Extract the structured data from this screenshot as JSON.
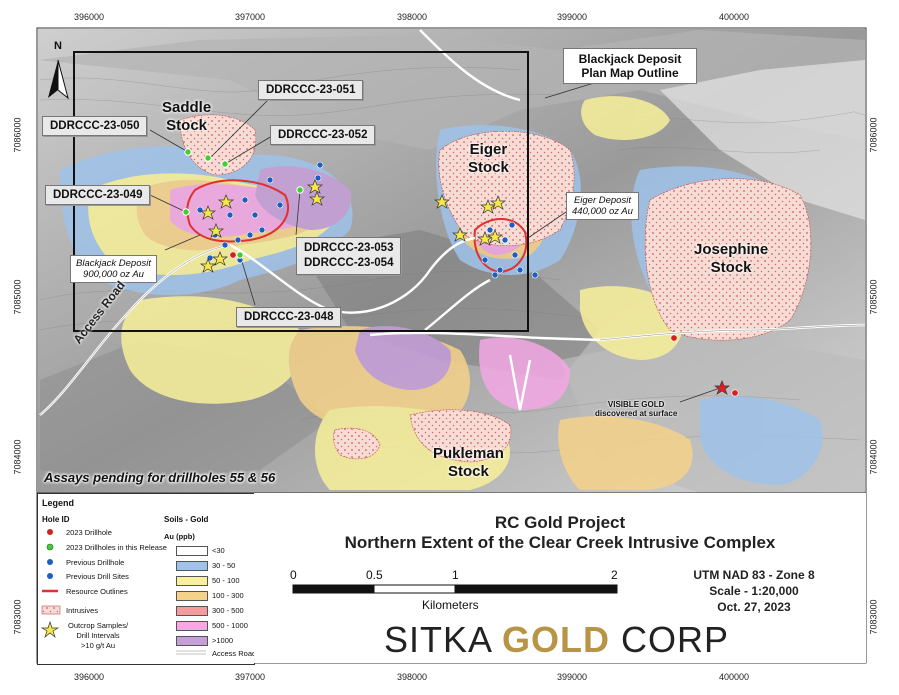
{
  "coordinates": {
    "easting": [
      "396000",
      "397000",
      "398000",
      "399000",
      "400000"
    ],
    "northing": [
      "7086000",
      "7085000",
      "7084000",
      "7083000"
    ]
  },
  "north_arrow": {
    "label": "N",
    "icon": "north-arrow-icon"
  },
  "map_labels": {
    "blackjack_outline": "Blackjack Deposit\nPlan Map Outline",
    "stocks": {
      "saddle": "Saddle\nStock",
      "eiger": "Eiger\nStock",
      "josephine": "Josephine\nStock",
      "pukleman": "Pukleman\nStock"
    },
    "deposits": {
      "blackjack": "Blackjack Deposit\n900,000 oz Au",
      "eiger": "Eiger Deposit\n440,000 oz Au"
    },
    "drillholes": {
      "h048": "DDRCCC-23-048",
      "h049": "DDRCCC-23-049",
      "h050": "DDRCCC-23-050",
      "h051": "DDRCCC-23-051",
      "h052": "DDRCCC-23-052",
      "h053_054": "DDRCCC-23-053\nDDRCCC-23-054"
    },
    "access_road": "Access Road",
    "visible_gold": "VISIBLE GOLD\ndiscovered at surface",
    "assays_pending": "Assays pending for drillholes 55 & 56"
  },
  "legend": {
    "title": "Legend",
    "hole_id_header": "Hole ID",
    "hole_items": [
      {
        "label": "2023 Drillhole",
        "color": "#d42020",
        "icon": "red-dot-icon"
      },
      {
        "label": "2023 Drillholes in this Release",
        "color": "#44cc33",
        "icon": "green-dot-icon"
      },
      {
        "label": "Previous Drillhole",
        "color": "#1c5fc0",
        "icon": "blue-dot-icon"
      },
      {
        "label": "Previous Drill Sites",
        "color": "#1c5fc0",
        "icon": "blue-dot-icon"
      },
      {
        "label": "Resource Outlines",
        "color": "#e03030",
        "icon": "red-line-icon"
      }
    ],
    "intrusives_label": "Intrusives",
    "outcrop_label": "Outcrop Samples/\nDrill Intervals\n>10 g/t Au",
    "soils_header": "Soils - Gold",
    "soils_unit": "Au (ppb)",
    "soils_classes": [
      {
        "label": "<30",
        "color": "#ffffff"
      },
      {
        "label": "30 - 50",
        "color": "#9fc3ea"
      },
      {
        "label": "50 - 100",
        "color": "#f8f09a"
      },
      {
        "label": "100 - 300",
        "color": "#f5d28a"
      },
      {
        "label": "300 - 500",
        "color": "#f39c9c"
      },
      {
        "label": "500 - 1000",
        "color": "#f4a8e4"
      },
      {
        "label": ">1000",
        "color": "#c79ed9"
      }
    ],
    "access_roads_label": "Access Roads"
  },
  "title_block": {
    "line1": "RC Gold Project",
    "line2": "Northern Extent of the Clear Creek Intrusive Complex",
    "scalebar": {
      "ticks": [
        "0",
        "0.5",
        "1",
        "2"
      ],
      "unit": "Kilometers"
    },
    "projection": "UTM NAD 83 - Zone 8",
    "scale": "Scale - 1:20,000",
    "date": "Oct. 27, 2023",
    "logo": {
      "part1": "SITKA ",
      "part2": "GOLD",
      "part3": " CORP"
    }
  }
}
